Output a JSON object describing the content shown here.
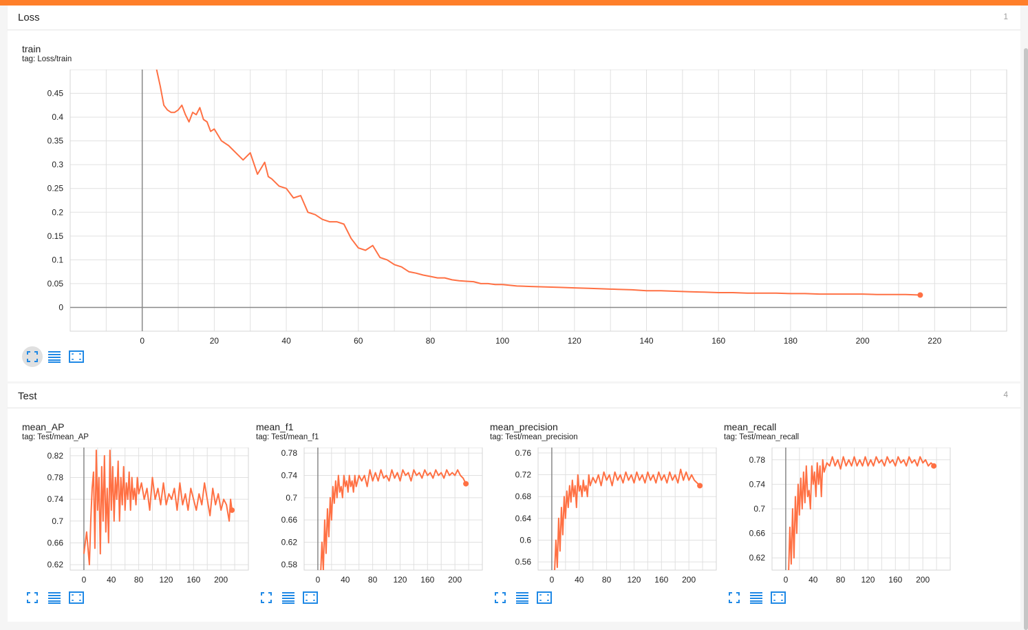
{
  "sections": [
    {
      "name": "Loss",
      "count": "1"
    },
    {
      "name": "Test",
      "count": "4"
    }
  ],
  "colors": {
    "accent": "#ff7f2a",
    "line": "#ff7043",
    "icon": "#1e88e5"
  },
  "icons": [
    "fit-domain-icon",
    "data-table-icon",
    "expand-icon"
  ],
  "cards": [
    {
      "title": "train",
      "tag": "tag: Loss/train"
    },
    {
      "title": "mean_AP",
      "tag": "tag: Test/mean_AP"
    },
    {
      "title": "mean_f1",
      "tag": "tag: Test/mean_f1"
    },
    {
      "title": "mean_precision",
      "tag": "tag: Test/mean_precision"
    },
    {
      "title": "mean_recall",
      "tag": "tag: Test/mean_recall"
    }
  ],
  "chart_data": [
    {
      "type": "line",
      "name": "train",
      "color": "#ff7043",
      "xlim": [
        -20,
        240
      ],
      "ylim": [
        -0.05,
        0.5
      ],
      "xticks": [
        0,
        20,
        40,
        60,
        80,
        100,
        120,
        140,
        160,
        180,
        200,
        220
      ],
      "yticks": [
        0,
        0.05,
        0.1,
        0.15,
        0.2,
        0.25,
        0.3,
        0.35,
        0.4,
        0.45
      ],
      "ytick_labels": [
        "0",
        "0.05",
        "0.1",
        "0.15",
        "0.2",
        "0.25",
        "0.3",
        "0.35",
        "0.4",
        "0.45"
      ],
      "x": [
        4,
        5,
        6,
        7,
        8,
        9,
        10,
        11,
        12,
        13,
        14,
        15,
        16,
        17,
        18,
        19,
        20,
        22,
        24,
        26,
        28,
        30,
        32,
        34,
        35,
        36,
        38,
        40,
        42,
        44,
        46,
        48,
        50,
        52,
        54,
        56,
        58,
        60,
        62,
        64,
        66,
        68,
        70,
        72,
        74,
        76,
        78,
        80,
        82,
        84,
        86,
        88,
        90,
        92,
        94,
        96,
        98,
        100,
        104,
        108,
        112,
        116,
        120,
        124,
        128,
        132,
        136,
        140,
        144,
        148,
        152,
        156,
        160,
        164,
        168,
        172,
        176,
        180,
        184,
        188,
        192,
        196,
        200,
        204,
        208,
        212,
        216
      ],
      "y": [
        0.5,
        0.465,
        0.425,
        0.415,
        0.41,
        0.41,
        0.415,
        0.425,
        0.405,
        0.39,
        0.41,
        0.405,
        0.42,
        0.395,
        0.39,
        0.37,
        0.375,
        0.35,
        0.34,
        0.325,
        0.31,
        0.325,
        0.28,
        0.305,
        0.275,
        0.27,
        0.255,
        0.25,
        0.23,
        0.235,
        0.2,
        0.195,
        0.185,
        0.18,
        0.18,
        0.175,
        0.145,
        0.125,
        0.12,
        0.13,
        0.105,
        0.1,
        0.09,
        0.085,
        0.075,
        0.072,
        0.068,
        0.065,
        0.062,
        0.062,
        0.058,
        0.056,
        0.055,
        0.054,
        0.05,
        0.05,
        0.048,
        0.048,
        0.045,
        0.044,
        0.043,
        0.042,
        0.041,
        0.04,
        0.039,
        0.038,
        0.037,
        0.035,
        0.035,
        0.034,
        0.033,
        0.032,
        0.031,
        0.031,
        0.03,
        0.03,
        0.03,
        0.029,
        0.029,
        0.028,
        0.028,
        0.028,
        0.028,
        0.027,
        0.027,
        0.027,
        0.026
      ]
    },
    {
      "type": "line",
      "name": "mean_AP",
      "color": "#ff7043",
      "xlim": [
        -20,
        240
      ],
      "ylim": [
        0.61,
        0.835
      ],
      "xticks": [
        0,
        40,
        80,
        120,
        160,
        200
      ],
      "yticks": [
        0.62,
        0.66,
        0.7,
        0.74,
        0.78,
        0.82
      ],
      "ytick_labels": [
        "0.62",
        "0.66",
        "0.7",
        "0.74",
        "0.78",
        "0.82"
      ],
      "x": [
        0,
        4,
        8,
        10,
        12,
        14,
        16,
        18,
        20,
        22,
        24,
        26,
        28,
        30,
        32,
        34,
        36,
        38,
        40,
        42,
        44,
        46,
        48,
        50,
        52,
        54,
        56,
        58,
        60,
        62,
        64,
        66,
        68,
        70,
        72,
        74,
        76,
        78,
        80,
        84,
        88,
        92,
        96,
        100,
        104,
        108,
        112,
        116,
        120,
        124,
        128,
        132,
        136,
        140,
        144,
        148,
        152,
        156,
        160,
        164,
        168,
        172,
        176,
        180,
        184,
        188,
        192,
        196,
        200,
        204,
        208,
        212,
        214,
        216
      ],
      "y": [
        0.64,
        0.68,
        0.62,
        0.7,
        0.76,
        0.79,
        0.65,
        0.83,
        0.72,
        0.78,
        0.64,
        0.8,
        0.7,
        0.82,
        0.68,
        0.76,
        0.66,
        0.83,
        0.72,
        0.8,
        0.7,
        0.78,
        0.74,
        0.81,
        0.7,
        0.78,
        0.73,
        0.8,
        0.72,
        0.77,
        0.74,
        0.79,
        0.72,
        0.78,
        0.74,
        0.76,
        0.73,
        0.78,
        0.75,
        0.77,
        0.74,
        0.76,
        0.72,
        0.78,
        0.74,
        0.76,
        0.73,
        0.77,
        0.73,
        0.75,
        0.74,
        0.76,
        0.72,
        0.77,
        0.73,
        0.75,
        0.72,
        0.76,
        0.74,
        0.72,
        0.75,
        0.73,
        0.77,
        0.74,
        0.71,
        0.76,
        0.73,
        0.75,
        0.72,
        0.74,
        0.73,
        0.7,
        0.74,
        0.72
      ]
    },
    {
      "type": "line",
      "name": "mean_f1",
      "color": "#ff7043",
      "xlim": [
        -20,
        240
      ],
      "ylim": [
        0.57,
        0.79
      ],
      "xticks": [
        0,
        40,
        80,
        120,
        160,
        200
      ],
      "yticks": [
        0.58,
        0.62,
        0.66,
        0.7,
        0.74,
        0.78
      ],
      "ytick_labels": [
        "0.58",
        "0.62",
        "0.66",
        "0.7",
        "0.74",
        "0.78"
      ],
      "x": [
        4,
        6,
        8,
        10,
        12,
        14,
        16,
        18,
        20,
        22,
        24,
        26,
        28,
        30,
        32,
        34,
        36,
        38,
        40,
        42,
        44,
        46,
        48,
        50,
        52,
        54,
        56,
        60,
        64,
        68,
        72,
        76,
        80,
        84,
        88,
        92,
        96,
        100,
        104,
        108,
        112,
        116,
        120,
        124,
        128,
        132,
        136,
        140,
        144,
        148,
        152,
        156,
        160,
        164,
        168,
        172,
        176,
        180,
        184,
        188,
        192,
        196,
        200,
        204,
        208,
        212,
        216
      ],
      "y": [
        0.56,
        0.62,
        0.57,
        0.66,
        0.6,
        0.68,
        0.63,
        0.7,
        0.66,
        0.72,
        0.69,
        0.73,
        0.7,
        0.74,
        0.71,
        0.72,
        0.7,
        0.74,
        0.72,
        0.73,
        0.71,
        0.74,
        0.72,
        0.73,
        0.71,
        0.74,
        0.72,
        0.74,
        0.73,
        0.74,
        0.72,
        0.75,
        0.73,
        0.745,
        0.73,
        0.75,
        0.735,
        0.74,
        0.73,
        0.75,
        0.735,
        0.745,
        0.73,
        0.75,
        0.74,
        0.745,
        0.73,
        0.75,
        0.74,
        0.745,
        0.735,
        0.75,
        0.74,
        0.745,
        0.735,
        0.75,
        0.74,
        0.745,
        0.735,
        0.75,
        0.74,
        0.745,
        0.74,
        0.75,
        0.74,
        0.735,
        0.725
      ]
    },
    {
      "type": "line",
      "name": "mean_precision",
      "color": "#ff7043",
      "xlim": [
        -20,
        240
      ],
      "ylim": [
        0.545,
        0.77
      ],
      "xticks": [
        0,
        40,
        80,
        120,
        160,
        200
      ],
      "yticks": [
        0.56,
        0.6,
        0.64,
        0.68,
        0.72,
        0.76
      ],
      "ytick_labels": [
        "0.56",
        "0.6",
        "0.64",
        "0.68",
        "0.72",
        "0.76"
      ],
      "x": [
        4,
        6,
        8,
        10,
        12,
        14,
        16,
        18,
        20,
        22,
        24,
        26,
        28,
        30,
        32,
        34,
        36,
        38,
        40,
        42,
        44,
        46,
        48,
        50,
        52,
        54,
        56,
        60,
        64,
        68,
        72,
        76,
        80,
        84,
        88,
        92,
        96,
        100,
        104,
        108,
        112,
        116,
        120,
        124,
        128,
        132,
        136,
        140,
        144,
        148,
        152,
        156,
        160,
        164,
        168,
        172,
        176,
        180,
        184,
        188,
        192,
        196,
        200,
        204,
        208,
        212,
        216
      ],
      "y": [
        0.54,
        0.6,
        0.55,
        0.64,
        0.58,
        0.66,
        0.61,
        0.68,
        0.64,
        0.69,
        0.66,
        0.7,
        0.67,
        0.71,
        0.68,
        0.7,
        0.66,
        0.72,
        0.69,
        0.7,
        0.68,
        0.71,
        0.69,
        0.7,
        0.68,
        0.72,
        0.7,
        0.715,
        0.705,
        0.72,
        0.7,
        0.725,
        0.71,
        0.72,
        0.7,
        0.725,
        0.71,
        0.72,
        0.705,
        0.725,
        0.71,
        0.72,
        0.705,
        0.725,
        0.71,
        0.72,
        0.705,
        0.725,
        0.71,
        0.72,
        0.705,
        0.725,
        0.71,
        0.72,
        0.705,
        0.725,
        0.71,
        0.72,
        0.705,
        0.73,
        0.71,
        0.725,
        0.71,
        0.72,
        0.71,
        0.705,
        0.7
      ]
    },
    {
      "type": "line",
      "name": "mean_recall",
      "color": "#ff7043",
      "xlim": [
        -20,
        240
      ],
      "ylim": [
        0.6,
        0.8
      ],
      "xticks": [
        0,
        40,
        80,
        120,
        160,
        200
      ],
      "yticks": [
        0.62,
        0.66,
        0.7,
        0.74,
        0.78
      ],
      "ytick_labels": [
        "0.62",
        "0.66",
        "0.7",
        "0.74",
        "0.78"
      ],
      "x": [
        4,
        6,
        8,
        10,
        12,
        14,
        16,
        18,
        20,
        22,
        24,
        26,
        28,
        30,
        32,
        34,
        36,
        38,
        40,
        42,
        44,
        46,
        48,
        50,
        52,
        54,
        56,
        60,
        64,
        68,
        72,
        76,
        80,
        84,
        88,
        92,
        96,
        100,
        104,
        108,
        112,
        116,
        120,
        124,
        128,
        132,
        136,
        140,
        144,
        148,
        152,
        156,
        160,
        164,
        168,
        172,
        176,
        180,
        184,
        188,
        192,
        196,
        200,
        204,
        208,
        212,
        216
      ],
      "y": [
        0.59,
        0.67,
        0.61,
        0.7,
        0.62,
        0.72,
        0.66,
        0.74,
        0.69,
        0.75,
        0.7,
        0.76,
        0.71,
        0.77,
        0.72,
        0.73,
        0.7,
        0.77,
        0.74,
        0.76,
        0.72,
        0.775,
        0.74,
        0.77,
        0.72,
        0.78,
        0.76,
        0.775,
        0.77,
        0.785,
        0.77,
        0.78,
        0.765,
        0.785,
        0.77,
        0.78,
        0.77,
        0.785,
        0.77,
        0.78,
        0.77,
        0.785,
        0.77,
        0.78,
        0.77,
        0.785,
        0.775,
        0.78,
        0.77,
        0.785,
        0.775,
        0.78,
        0.77,
        0.785,
        0.775,
        0.78,
        0.77,
        0.785,
        0.775,
        0.78,
        0.77,
        0.785,
        0.775,
        0.78,
        0.77,
        0.775,
        0.77
      ]
    }
  ]
}
